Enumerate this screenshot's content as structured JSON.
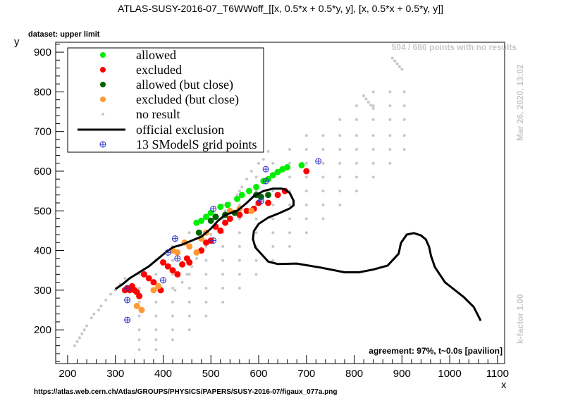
{
  "title": "ATLAS-SUSY-2016-07_T6WWoff_[[x, 0.5*x + 0.5*y, y], [x, 0.5*x + 0.5*y, y]]",
  "dataset_label": "dataset: upper limit",
  "points_note": "504 / 686 points with no results",
  "timestamp": "Mar 26, 2020, 13:02",
  "kfactor": "k-factor 1.00",
  "agreement": "agreement: 97%, t~0.0s [pavilion]",
  "url": "https://atlas.web.cern.ch/Atlas/GROUPS/PHYSICS/PAPERS/SUSY-2016-07/figaux_077a.png",
  "colors": {
    "allowed": "#00ee00",
    "excluded": "#ff0000",
    "allowed_close": "#006400",
    "excluded_close": "#ff9933",
    "no_result": "#c8c8c8",
    "official": "#000000",
    "grid_points": "#3333cc"
  },
  "legend": {
    "allowed": "allowed",
    "excluded": "excluded",
    "allowed_close": "allowed (but close)",
    "excluded_close": "excluded (but close)",
    "no_result": "no result",
    "official": "official exclusion",
    "grid": "13 SModelS grid points"
  },
  "chart_data": {
    "type": "scatter",
    "title": "ATLAS-SUSY-2016-07_T6WWoff_[[x, 0.5*x + 0.5*y, y], [x, 0.5*x + 0.5*y, y]]",
    "xlabel": "x",
    "ylabel": "y",
    "xlim": [
      175,
      1115
    ],
    "ylim": [
      115,
      925
    ],
    "xticks": [
      200,
      300,
      400,
      500,
      600,
      700,
      800,
      900,
      1000,
      1100
    ],
    "yticks": [
      200,
      300,
      400,
      500,
      600,
      700,
      800,
      900
    ],
    "legend_position": "top-left",
    "series": [
      {
        "name": "no result",
        "kind": "dots",
        "points": [
          [
            215,
            160
          ],
          [
            220,
            170
          ],
          [
            225,
            180
          ],
          [
            230,
            190
          ],
          [
            235,
            200
          ],
          [
            240,
            210
          ],
          [
            250,
            230
          ],
          [
            255,
            240
          ],
          [
            265,
            250
          ],
          [
            270,
            260
          ],
          [
            280,
            275
          ],
          [
            290,
            290
          ],
          [
            300,
            300
          ],
          [
            310,
            315
          ],
          [
            320,
            330
          ],
          [
            425,
            300
          ],
          [
            440,
            320
          ],
          [
            450,
            340
          ],
          [
            460,
            360
          ],
          [
            470,
            380
          ],
          [
            480,
            400
          ],
          [
            490,
            420
          ],
          [
            500,
            440
          ],
          [
            510,
            460
          ],
          [
            520,
            480
          ],
          [
            530,
            500
          ],
          [
            540,
            520
          ],
          [
            555,
            540
          ],
          [
            565,
            560
          ],
          [
            575,
            580
          ],
          [
            585,
            600
          ],
          [
            600,
            620
          ],
          [
            610,
            630
          ],
          [
            620,
            650
          ],
          [
            820,
            790
          ],
          [
            825,
            782
          ],
          [
            830,
            774
          ],
          [
            835,
            766
          ],
          [
            840,
            758
          ],
          [
            880,
            885
          ],
          [
            885,
            878
          ],
          [
            890,
            871
          ],
          [
            895,
            864
          ],
          [
            900,
            857
          ]
        ],
        "grid_x": [
          350,
          385,
          420,
          455,
          490,
          525,
          560,
          595,
          630,
          665,
          700,
          735,
          770,
          805,
          840,
          875,
          905
        ],
        "grid_y": [
          150,
          175,
          200,
          235,
          270,
          305,
          340,
          375,
          410,
          445,
          480,
          515,
          550,
          585,
          620,
          655,
          690,
          730,
          765,
          800
        ]
      },
      {
        "name": "allowed",
        "kind": "dots",
        "points": [
          [
            470,
            470
          ],
          [
            480,
            475
          ],
          [
            490,
            485
          ],
          [
            500,
            495
          ],
          [
            520,
            510
          ],
          [
            535,
            515
          ],
          [
            555,
            530
          ],
          [
            565,
            540
          ],
          [
            580,
            550
          ],
          [
            595,
            560
          ],
          [
            610,
            575
          ],
          [
            620,
            580
          ],
          [
            630,
            590
          ],
          [
            640,
            598
          ],
          [
            650,
            605
          ],
          [
            660,
            610
          ],
          [
            690,
            615
          ]
        ]
      },
      {
        "name": "excluded",
        "kind": "dots",
        "points": [
          [
            320,
            300
          ],
          [
            325,
            305
          ],
          [
            330,
            300
          ],
          [
            335,
            310
          ],
          [
            340,
            300
          ],
          [
            345,
            295
          ],
          [
            350,
            285
          ],
          [
            360,
            340
          ],
          [
            370,
            330
          ],
          [
            380,
            320
          ],
          [
            395,
            300
          ],
          [
            400,
            370
          ],
          [
            410,
            360
          ],
          [
            420,
            350
          ],
          [
            430,
            340
          ],
          [
            440,
            365
          ],
          [
            450,
            380
          ],
          [
            455,
            370
          ],
          [
            480,
            400
          ],
          [
            490,
            420
          ],
          [
            500,
            425
          ],
          [
            510,
            460
          ],
          [
            520,
            450
          ],
          [
            530,
            470
          ],
          [
            540,
            480
          ],
          [
            560,
            490
          ],
          [
            575,
            500
          ],
          [
            590,
            505
          ],
          [
            600,
            520
          ],
          [
            620,
            520
          ],
          [
            640,
            540
          ],
          [
            655,
            550
          ],
          [
            700,
            600
          ]
        ]
      },
      {
        "name": "allowed (but close)",
        "kind": "dots",
        "points": [
          [
            475,
            445
          ],
          [
            500,
            475
          ],
          [
            510,
            485
          ],
          [
            530,
            490
          ],
          [
            550,
            495
          ],
          [
            595,
            540
          ],
          [
            605,
            535
          ],
          [
            620,
            540
          ]
        ]
      },
      {
        "name": "excluded (but close)",
        "kind": "dots",
        "points": [
          [
            345,
            260
          ],
          [
            355,
            250
          ],
          [
            380,
            300
          ],
          [
            390,
            310
          ],
          [
            420,
            400
          ],
          [
            430,
            395
          ],
          [
            445,
            420
          ],
          [
            455,
            410
          ],
          [
            470,
            395
          ],
          [
            480,
            430
          ],
          [
            490,
            445
          ],
          [
            540,
            500
          ],
          [
            560,
            505
          ],
          [
            585,
            500
          ]
        ]
      },
      {
        "name": "official exclusion",
        "kind": "line",
        "points": [
          [
            300,
            303
          ],
          [
            315,
            315
          ],
          [
            330,
            330
          ],
          [
            350,
            345
          ],
          [
            370,
            360
          ],
          [
            390,
            380
          ],
          [
            405,
            395
          ],
          [
            420,
            408
          ],
          [
            440,
            415
          ],
          [
            460,
            425
          ],
          [
            480,
            435
          ],
          [
            500,
            455
          ],
          [
            515,
            475
          ],
          [
            530,
            490
          ],
          [
            555,
            500
          ],
          [
            575,
            520
          ],
          [
            590,
            537
          ],
          [
            610,
            550
          ],
          [
            630,
            556
          ],
          [
            648,
            556
          ],
          [
            655,
            554
          ],
          [
            665,
            545
          ],
          [
            673,
            526
          ],
          [
            673,
            514
          ],
          [
            665,
            506
          ],
          [
            643,
            494
          ],
          [
            620,
            483
          ],
          [
            600,
            467
          ],
          [
            590,
            449
          ],
          [
            588,
            429
          ],
          [
            593,
            408
          ],
          [
            605,
            392
          ],
          [
            620,
            372
          ],
          [
            640,
            366
          ],
          [
            680,
            367
          ],
          [
            730,
            357
          ],
          [
            780,
            345
          ],
          [
            810,
            345
          ],
          [
            840,
            352
          ],
          [
            870,
            362
          ],
          [
            893,
            392
          ],
          [
            898,
            419
          ],
          [
            910,
            440
          ],
          [
            925,
            444
          ],
          [
            940,
            438
          ],
          [
            950,
            428
          ],
          [
            957,
            409
          ],
          [
            961,
            386
          ],
          [
            969,
            358
          ],
          [
            990,
            320
          ],
          [
            1030,
            282
          ],
          [
            1050,
            258
          ],
          [
            1065,
            223
          ]
        ]
      },
      {
        "name": "13 SModelS grid points",
        "kind": "crosses",
        "points": [
          [
            325,
            225
          ],
          [
            325,
            275
          ],
          [
            325,
            305
          ],
          [
            400,
            325
          ],
          [
            410,
            395
          ],
          [
            430,
            380
          ],
          [
            505,
            425
          ],
          [
            505,
            505
          ],
          [
            605,
            525
          ],
          [
            615,
            575
          ],
          [
            615,
            605
          ],
          [
            725,
            625
          ],
          [
            425,
            430
          ]
        ]
      }
    ]
  }
}
